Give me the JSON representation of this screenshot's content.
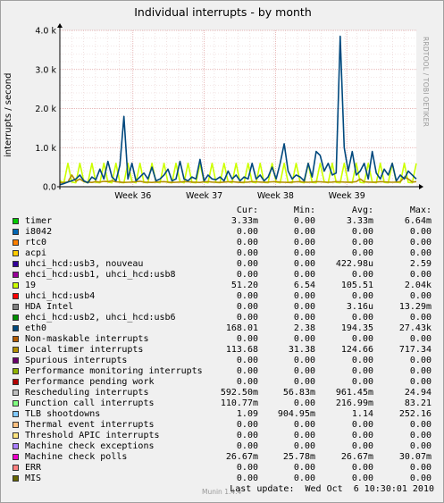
{
  "title": "Individual interrupts - by month",
  "side_text": "RRDTOOL / TOBI OETIKER",
  "footer": {
    "version": "Munin 1.4.4",
    "last_update": "Last update:  Wed Oct  6 10:30:01 2010"
  },
  "legend_headers": {
    "cur": "Cur:",
    "min": "Min:",
    "avg": "Avg:",
    "max": "Max:"
  },
  "legend": [
    {
      "name": "timer",
      "color": "#00cc00",
      "cur": "3.33m",
      "min": "0.00",
      "avg": "3.33m",
      "max": "6.64m"
    },
    {
      "name": "i8042",
      "color": "#0066b3",
      "cur": "0.00",
      "min": "0.00",
      "avg": "0.00",
      "max": "0.00"
    },
    {
      "name": "rtc0",
      "color": "#ff8000",
      "cur": "0.00",
      "min": "0.00",
      "avg": "0.00",
      "max": "0.00"
    },
    {
      "name": "acpi",
      "color": "#ffcc00",
      "cur": "0.00",
      "min": "0.00",
      "avg": "0.00",
      "max": "0.00"
    },
    {
      "name": "uhci_hcd:usb3, nouveau",
      "color": "#330099",
      "cur": "0.00",
      "min": "0.00",
      "avg": "422.98u",
      "max": "2.59"
    },
    {
      "name": "ehci_hcd:usb1, uhci_hcd:usb8",
      "color": "#990099",
      "cur": "0.00",
      "min": "0.00",
      "avg": "0.00",
      "max": "0.00"
    },
    {
      "name": "19",
      "color": "#ccff00",
      "cur": "51.20",
      "min": "6.54",
      "avg": "105.51",
      "max": "2.04k"
    },
    {
      "name": "uhci_hcd:usb4",
      "color": "#ff0000",
      "cur": "0.00",
      "min": "0.00",
      "avg": "0.00",
      "max": "0.00"
    },
    {
      "name": "HDA Intel",
      "color": "#808080",
      "cur": "0.00",
      "min": "0.00",
      "avg": "3.16u",
      "max": "13.29m"
    },
    {
      "name": "ehci_hcd:usb2, uhci_hcd:usb6",
      "color": "#008f00",
      "cur": "0.00",
      "min": "0.00",
      "avg": "0.00",
      "max": "0.00"
    },
    {
      "name": "eth0",
      "color": "#00487d",
      "cur": "168.01",
      "min": "2.38",
      "avg": "194.35",
      "max": "27.43k"
    },
    {
      "name": "Non-maskable interrupts",
      "color": "#b35a00",
      "cur": "0.00",
      "min": "0.00",
      "avg": "0.00",
      "max": "0.00"
    },
    {
      "name": "Local timer interrupts",
      "color": "#b38f00",
      "cur": "113.68",
      "min": "31.38",
      "avg": "124.66",
      "max": "717.34"
    },
    {
      "name": "Spurious interrupts",
      "color": "#6b006b",
      "cur": "0.00",
      "min": "0.00",
      "avg": "0.00",
      "max": "0.00"
    },
    {
      "name": "Performance monitoring interrupts",
      "color": "#8fb300",
      "cur": "0.00",
      "min": "0.00",
      "avg": "0.00",
      "max": "0.00"
    },
    {
      "name": "Performance pending work",
      "color": "#b30000",
      "cur": "0.00",
      "min": "0.00",
      "avg": "0.00",
      "max": "0.00"
    },
    {
      "name": "Rescheduling interrupts",
      "color": "#bebebe",
      "cur": "592.50m",
      "min": "56.83m",
      "avg": "961.45m",
      "max": "24.94"
    },
    {
      "name": "Function call interrupts",
      "color": "#80ff80",
      "cur": "110.77m",
      "min": "0.00",
      "avg": "216.99m",
      "max": "83.21"
    },
    {
      "name": "TLB shootdowns",
      "color": "#80c9ff",
      "cur": "1.09",
      "min": "904.95m",
      "avg": "1.14",
      "max": "252.16"
    },
    {
      "name": "Thermal event interrupts",
      "color": "#ffc080",
      "cur": "0.00",
      "min": "0.00",
      "avg": "0.00",
      "max": "0.00"
    },
    {
      "name": "Threshold APIC interrupts",
      "color": "#ffe680",
      "cur": "0.00",
      "min": "0.00",
      "avg": "0.00",
      "max": "0.00"
    },
    {
      "name": "Machine check exceptions",
      "color": "#aa80ff",
      "cur": "0.00",
      "min": "0.00",
      "avg": "0.00",
      "max": "0.00"
    },
    {
      "name": "Machine check polls",
      "color": "#ee00cc",
      "cur": "26.67m",
      "min": "25.78m",
      "avg": "26.67m",
      "max": "30.07m"
    },
    {
      "name": "ERR",
      "color": "#ff8080",
      "cur": "0.00",
      "min": "0.00",
      "avg": "0.00",
      "max": "0.00"
    },
    {
      "name": "MIS",
      "color": "#666600",
      "cur": "0.00",
      "min": "0.00",
      "avg": "0.00",
      "max": "0.00"
    }
  ],
  "chart_data": {
    "type": "line",
    "title": "Individual interrupts - by month",
    "ylabel": "interrupts / second",
    "ylim": [
      0,
      4000
    ],
    "y_ticks": [
      0,
      1000,
      2000,
      3000,
      4000
    ],
    "y_tick_labels": [
      "0.0",
      "1.0 k",
      "2.0 k",
      "3.0 k",
      "4.0 k"
    ],
    "x_tick_labels": [
      "Week 36",
      "Week 37",
      "Week 38",
      "Week 39"
    ],
    "x_tick_positions": [
      0.205,
      0.405,
      0.605,
      0.805
    ],
    "grid": true,
    "series": [
      {
        "name": "19",
        "color": "#ccff00",
        "values": [
          150,
          100,
          600,
          120,
          100,
          600,
          130,
          100,
          600,
          110,
          100,
          600,
          120,
          100,
          600,
          110,
          100,
          600,
          130,
          100,
          600,
          110,
          100,
          600,
          120,
          100,
          600,
          110,
          100,
          600,
          130,
          100,
          600,
          110,
          100,
          600,
          120,
          100,
          600,
          110,
          100,
          600,
          130,
          100,
          600,
          110,
          100,
          600,
          120,
          100,
          600,
          110,
          100,
          600,
          120,
          100,
          600,
          110,
          100,
          600,
          120,
          100,
          600,
          110,
          100,
          600,
          130,
          100,
          600,
          110,
          100,
          600,
          120,
          100,
          600,
          110,
          100,
          600,
          120,
          100,
          600,
          110,
          100,
          600,
          120,
          100,
          600,
          110,
          100,
          600
        ]
      },
      {
        "name": "Local timer interrupts",
        "color": "#b38f00",
        "values": [
          100,
          110,
          120,
          300,
          140,
          200,
          130,
          120,
          110,
          130,
          120,
          140,
          130,
          150,
          125,
          120,
          110,
          115,
          120,
          130,
          140,
          120,
          115,
          110,
          120,
          125,
          130,
          120,
          110,
          115,
          120,
          130,
          125,
          120,
          115,
          110,
          125,
          130,
          120,
          115,
          110,
          120,
          125,
          130,
          120,
          110,
          115,
          120,
          130,
          125,
          120,
          115,
          120,
          125,
          130,
          120,
          115,
          110,
          120,
          125,
          130,
          120,
          115,
          120,
          130,
          125,
          120,
          115,
          120,
          130,
          125,
          120,
          115,
          120,
          130,
          200,
          125,
          120,
          115,
          120,
          130,
          125,
          120,
          115,
          120,
          130,
          250,
          200,
          120,
          130
        ]
      },
      {
        "name": "eth0",
        "color": "#00487d",
        "values": [
          50,
          80,
          120,
          150,
          200,
          300,
          150,
          100,
          250,
          180,
          450,
          200,
          650,
          250,
          150,
          550,
          1800,
          200,
          600,
          150,
          250,
          350,
          200,
          500,
          150,
          200,
          300,
          450,
          150,
          200,
          650,
          200,
          150,
          250,
          200,
          700,
          150,
          300,
          200,
          180,
          250,
          150,
          400,
          200,
          300,
          150,
          250,
          200,
          600,
          200,
          300,
          150,
          250,
          500,
          200,
          600,
          1100,
          400,
          200,
          300,
          250,
          150,
          600,
          250,
          900,
          800,
          400,
          600,
          300,
          350,
          3850,
          1000,
          400,
          900,
          300,
          400,
          600,
          200,
          900,
          350,
          200,
          450,
          300,
          600,
          150,
          300,
          200,
          400,
          300,
          200
        ]
      }
    ]
  }
}
